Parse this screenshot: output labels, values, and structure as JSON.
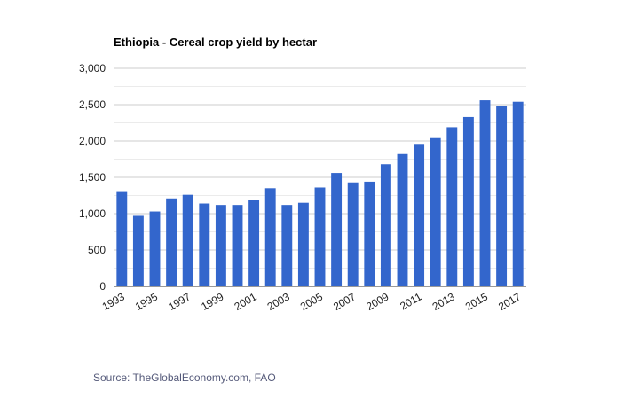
{
  "chart_data": {
    "type": "bar",
    "title": "Ethiopia - Cereal crop yield by hectar",
    "xlabel": "",
    "ylabel": "",
    "categories": [
      "1993",
      "1994",
      "1995",
      "1996",
      "1997",
      "1998",
      "1999",
      "2000",
      "2001",
      "2002",
      "2003",
      "2004",
      "2005",
      "2006",
      "2007",
      "2008",
      "2009",
      "2010",
      "2011",
      "2012",
      "2013",
      "2014",
      "2015",
      "2016",
      "2017"
    ],
    "x_tick_labels": [
      "1993",
      "1995",
      "1997",
      "1999",
      "2001",
      "2003",
      "2005",
      "2007",
      "2009",
      "2011",
      "2013",
      "2015",
      "2017"
    ],
    "values": [
      1310,
      970,
      1030,
      1210,
      1260,
      1140,
      1120,
      1120,
      1190,
      1350,
      1120,
      1150,
      1360,
      1560,
      1430,
      1440,
      1680,
      1820,
      1960,
      2040,
      2190,
      2330,
      2560,
      2480,
      2540
    ],
    "ylim": [
      0,
      3000
    ],
    "y_ticks": [
      0,
      500,
      1000,
      1500,
      2000,
      2500,
      3000
    ],
    "y_tick_labels": [
      "0",
      "500",
      "1,000",
      "1,500",
      "2,000",
      "2,500",
      "3,000"
    ],
    "grid": true,
    "legend": "none",
    "bar_color": "#3366cc"
  },
  "source": "Source: TheGlobalEconomy.com, FAO"
}
